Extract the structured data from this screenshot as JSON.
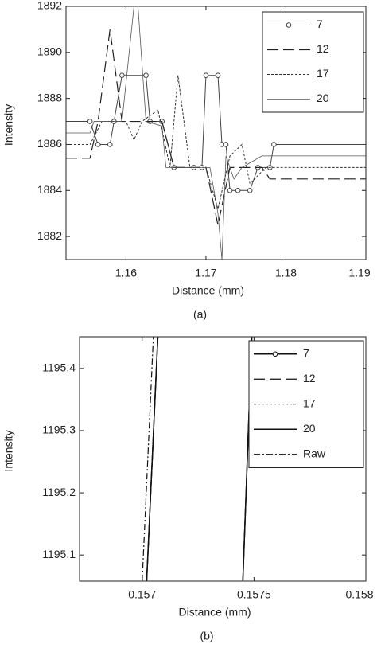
{
  "chart_data": [
    {
      "type": "line",
      "caption": "(a)",
      "x_label": "Distance (mm)",
      "y_label": "Intensity",
      "xlim": [
        1.1525,
        1.19
      ],
      "xticks": [
        1.16,
        1.17,
        1.18,
        1.19
      ],
      "ylim": [
        1881,
        1892
      ],
      "yticks": [
        1882,
        1884,
        1886,
        1888,
        1890,
        1892
      ],
      "series": [
        {
          "name": "7",
          "color": "#444",
          "dash": "none",
          "marker": "circle",
          "width": 1,
          "x": [
            1.1525,
            1.1555,
            1.1565,
            1.158,
            1.1585,
            1.1595,
            1.1625,
            1.163,
            1.1645,
            1.166,
            1.1685,
            1.1695,
            1.17,
            1.1715,
            1.172,
            1.1725,
            1.173,
            1.174,
            1.1755,
            1.1765,
            1.178,
            1.1785,
            1.19
          ],
          "values": [
            1887,
            1887,
            1886,
            1886,
            1887,
            1889,
            1889,
            1887,
            1887,
            1885,
            1885,
            1885,
            1889,
            1889,
            1886,
            1886,
            1884,
            1884,
            1884,
            1885,
            1885,
            1886,
            1886
          ]
        },
        {
          "name": "12",
          "color": "#222",
          "dash": "14 6",
          "marker": "none",
          "width": 1.2,
          "x": [
            1.1525,
            1.1555,
            1.1565,
            1.158,
            1.1595,
            1.1645,
            1.166,
            1.17,
            1.1715,
            1.173,
            1.177,
            1.178,
            1.19
          ],
          "values": [
            1885.4,
            1885.4,
            1887,
            1891,
            1887,
            1887,
            1885,
            1885,
            1882.5,
            1885,
            1885,
            1884.5,
            1884.5
          ]
        },
        {
          "name": "17",
          "color": "#333",
          "dash": "3 2",
          "marker": "none",
          "width": 1,
          "x": [
            1.1525,
            1.1555,
            1.157,
            1.16,
            1.161,
            1.162,
            1.164,
            1.1655,
            1.1665,
            1.168,
            1.17,
            1.1715,
            1.173,
            1.1745,
            1.1755,
            1.1775,
            1.19
          ],
          "values": [
            1886,
            1886,
            1887,
            1887,
            1886.2,
            1887,
            1887.5,
            1885,
            1889,
            1885,
            1885,
            1883.2,
            1885.5,
            1886,
            1884.3,
            1885,
            1885
          ]
        },
        {
          "name": "20",
          "color": "#555",
          "dash": "none",
          "marker": "none",
          "width": 0.8,
          "x": [
            1.1525,
            1.1555,
            1.156,
            1.1595,
            1.161,
            1.1615,
            1.1625,
            1.1645,
            1.165,
            1.1705,
            1.1715,
            1.172,
            1.1725,
            1.1735,
            1.1745,
            1.177,
            1.19
          ],
          "values": [
            1886.5,
            1886.5,
            1887,
            1887,
            1892,
            1892,
            1887,
            1886.8,
            1885,
            1885,
            1883,
            1881,
            1885.5,
            1884.5,
            1885,
            1885.5,
            1885.5
          ]
        }
      ]
    },
    {
      "type": "line",
      "caption": "(b)",
      "x_label": "Distance (mm)",
      "y_label": "Intensity",
      "xlim": [
        0.15672,
        0.158
      ],
      "xticks": [
        0.157,
        0.1575,
        0.158
      ],
      "ylim": [
        1195.058,
        1195.451
      ],
      "yticks": [
        1195.1,
        1195.2,
        1195.3,
        1195.4
      ],
      "series": [
        {
          "name": "7",
          "color": "#111",
          "dash": "none",
          "marker": "circle",
          "width": 1.5,
          "x": [
            0.15702,
            0.15707,
            null,
            0.15745,
            0.15749
          ],
          "values": [
            1195.058,
            1195.451,
            null,
            1195.058,
            1195.451
          ]
        },
        {
          "name": "12",
          "color": "#111",
          "dash": "14 6",
          "marker": "none",
          "width": 1.2,
          "x": [
            0.15702,
            0.15707,
            null,
            0.15745,
            0.15749
          ],
          "values": [
            1195.058,
            1195.451,
            null,
            1195.058,
            1195.451
          ]
        },
        {
          "name": "17",
          "color": "#555",
          "dash": "3 2",
          "marker": "none",
          "width": 1,
          "x": [
            0.15702,
            0.15707,
            null,
            0.15745,
            0.15749
          ],
          "values": [
            1195.058,
            1195.451,
            null,
            1195.058,
            1195.451
          ]
        },
        {
          "name": "20",
          "color": "#111",
          "dash": "none",
          "marker": "none",
          "width": 1.5,
          "x": [
            0.15702,
            0.15707,
            null,
            0.15745,
            0.15749
          ],
          "values": [
            1195.058,
            1195.451,
            null,
            1195.058,
            1195.451
          ]
        },
        {
          "name": "Raw",
          "color": "#111",
          "dash": "8 3 2 3",
          "marker": "none",
          "width": 1.2,
          "x": [
            0.157,
            0.15705
          ],
          "values": [
            1195.058,
            1195.451
          ]
        }
      ]
    }
  ]
}
